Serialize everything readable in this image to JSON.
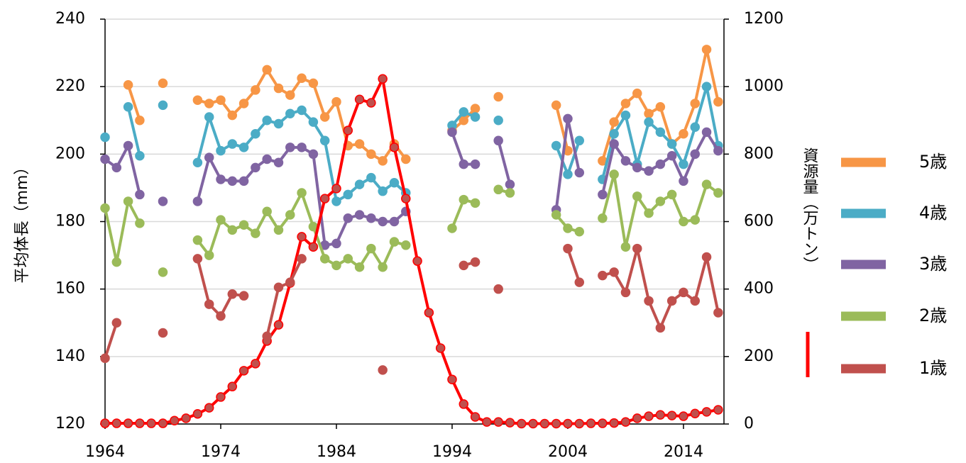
{
  "chart_data": {
    "type": "line",
    "y_label": "平均体長（mm）",
    "y2_label": "資源量（万トン）",
    "x": [
      1964,
      1965,
      1966,
      1967,
      1968,
      1969,
      1970,
      1971,
      1972,
      1973,
      1974,
      1975,
      1976,
      1977,
      1978,
      1979,
      1980,
      1981,
      1982,
      1983,
      1984,
      1985,
      1986,
      1987,
      1988,
      1989,
      1990,
      1991,
      1992,
      1993,
      1994,
      1995,
      1996,
      1997,
      1998,
      1999,
      2000,
      2001,
      2002,
      2003,
      2004,
      2005,
      2006,
      2007,
      2008,
      2009,
      2010,
      2011,
      2012,
      2013,
      2014,
      2015,
      2016,
      2017
    ],
    "xlim": [
      1964,
      2017.5
    ],
    "xticks": [
      1964,
      1974,
      1984,
      1994,
      2004,
      2014
    ],
    "ylim": [
      120,
      240
    ],
    "yticks": [
      120,
      140,
      160,
      180,
      200,
      220,
      240
    ],
    "y2lim": [
      0,
      1200
    ],
    "y2ticks": [
      0,
      200,
      400,
      600,
      800,
      1000,
      1200
    ],
    "grid": true,
    "series": [
      {
        "name": "5歳",
        "color": "#f79646",
        "values": [
          null,
          null,
          220.5,
          210,
          null,
          221,
          null,
          null,
          216,
          215,
          216,
          211.5,
          215,
          219,
          225,
          219.5,
          217.5,
          222.5,
          221,
          211,
          215.5,
          202.5,
          203,
          200,
          198,
          203,
          198.5,
          null,
          null,
          null,
          207,
          210,
          213.5,
          null,
          217,
          null,
          null,
          null,
          null,
          214.5,
          201,
          null,
          null,
          198,
          209.5,
          215,
          218,
          212,
          214,
          203,
          206,
          215,
          231,
          215.5
        ]
      },
      {
        "name": "4歳",
        "color": "#4bacc6",
        "values": [
          205,
          null,
          214,
          199.5,
          null,
          214.5,
          null,
          null,
          197.5,
          211,
          201,
          203,
          202,
          206,
          210,
          209,
          212,
          213,
          209.5,
          204,
          186,
          188,
          191,
          193,
          189,
          191.5,
          188.5,
          null,
          null,
          null,
          208.5,
          212.5,
          211,
          null,
          210,
          null,
          null,
          null,
          null,
          202.5,
          194,
          204,
          null,
          192.5,
          206,
          211.5,
          197,
          209.5,
          206.5,
          203,
          197,
          208,
          220,
          202.5
        ]
      },
      {
        "name": "3歳",
        "color": "#8064a2",
        "values": [
          198.5,
          196,
          202.5,
          188,
          null,
          186,
          null,
          null,
          186,
          199,
          192.5,
          192,
          192,
          196,
          198.5,
          197.5,
          202,
          202,
          200,
          173,
          173.5,
          181,
          182,
          181,
          180,
          180,
          183,
          null,
          null,
          null,
          206.5,
          197,
          197,
          null,
          204,
          191,
          null,
          null,
          null,
          183.5,
          210.5,
          194.5,
          null,
          188,
          203,
          198,
          196,
          195,
          197,
          199.5,
          192,
          200,
          206.5,
          201
        ]
      },
      {
        "name": "2歳",
        "color": "#9bbb59",
        "values": [
          184,
          168,
          186,
          179.5,
          null,
          165,
          null,
          null,
          174.5,
          170,
          180.5,
          177.5,
          179,
          176.5,
          183,
          177.5,
          182,
          188.5,
          178.5,
          169,
          167,
          169,
          166.5,
          172,
          166.5,
          174,
          173,
          null,
          null,
          null,
          178,
          186.5,
          185.5,
          null,
          189.5,
          188.5,
          null,
          null,
          null,
          182,
          178,
          177,
          null,
          181,
          194,
          172.5,
          187.5,
          182.5,
          186,
          188,
          180,
          180.5,
          191,
          188.5
        ]
      },
      {
        "color": "#ff0000",
        "axis": "y2",
        "values": [
          2,
          2,
          2,
          2,
          2,
          2,
          10,
          17,
          30,
          48,
          80,
          111,
          158,
          179,
          246,
          294,
          418,
          555,
          525,
          668,
          698,
          870,
          962,
          952,
          1023,
          820,
          668,
          483,
          330,
          225,
          132,
          59,
          21,
          6,
          6,
          4,
          1,
          1,
          1,
          1,
          1,
          1,
          2,
          2,
          3,
          6,
          17,
          23,
          27,
          25,
          23,
          31,
          36,
          42
        ]
      },
      {
        "name": "1歳",
        "color": "#c0504d",
        "values": [
          139.5,
          150,
          null,
          null,
          null,
          147,
          null,
          null,
          169,
          155.5,
          152,
          158.5,
          158,
          null,
          146,
          160.5,
          162,
          169,
          null,
          null,
          null,
          null,
          null,
          null,
          136,
          null,
          null,
          null,
          null,
          null,
          null,
          167,
          168,
          null,
          160,
          null,
          null,
          null,
          null,
          null,
          172,
          162,
          null,
          164,
          165,
          159,
          172,
          156.5,
          148.5,
          156.5,
          159,
          156.5,
          169.5,
          153
        ]
      }
    ]
  }
}
